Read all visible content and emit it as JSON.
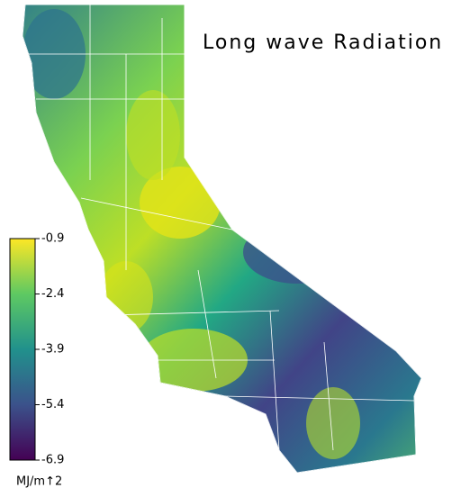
{
  "title": "Long wave Radiation",
  "colorbar": {
    "label": "MJ/m↑2",
    "lim": [
      -6.9,
      -0.9
    ],
    "ticks": [
      -0.9,
      -2.4,
      -3.9,
      -5.4,
      -6.9
    ],
    "colors": [
      "#440154",
      "#3b528b",
      "#21918c",
      "#5ec962",
      "#fde725"
    ]
  }
}
